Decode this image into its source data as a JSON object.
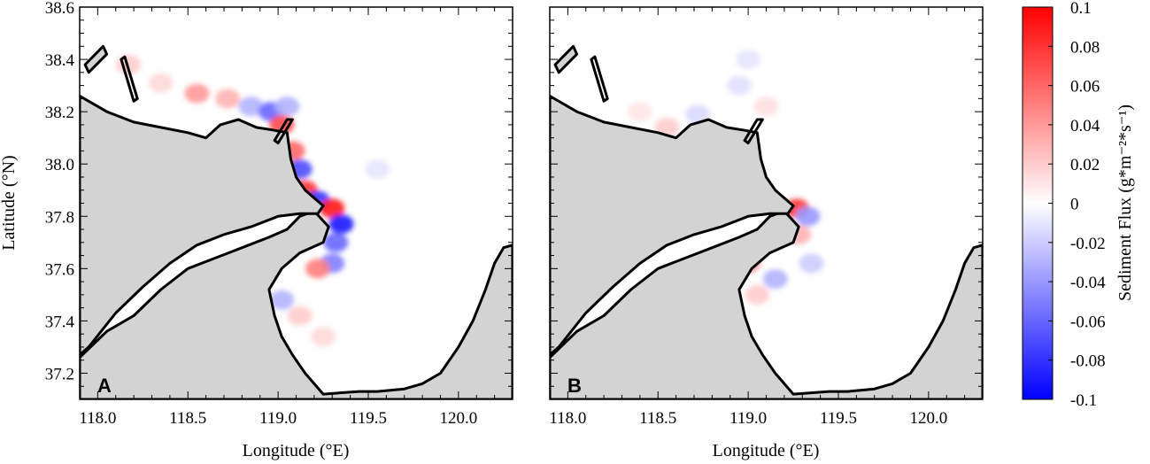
{
  "chart_data": [
    {
      "type": "heatmap",
      "panel_label": "A",
      "xlabel": "Longitude (°E)",
      "ylabel": "Latitude (°N)",
      "xlim": [
        117.9,
        120.3
      ],
      "ylim": [
        37.1,
        38.6
      ],
      "x_ticks": [
        "118.0",
        "118.5",
        "119.0",
        "119.5",
        "120.0"
      ],
      "x_tick_values": [
        118.0,
        118.5,
        119.0,
        119.5,
        120.0
      ],
      "y_ticks": [
        "37.2",
        "37.4",
        "37.6",
        "37.8",
        "38.0",
        "38.2",
        "38.4",
        "38.6"
      ],
      "y_tick_values": [
        37.2,
        37.4,
        37.6,
        37.8,
        38.0,
        38.2,
        38.4,
        38.6
      ],
      "field_patches": [
        {
          "lon": 118.17,
          "lat": 38.38,
          "value": 0.02
        },
        {
          "lon": 118.35,
          "lat": 38.31,
          "value": 0.015
        },
        {
          "lon": 118.55,
          "lat": 38.27,
          "value": 0.04
        },
        {
          "lon": 118.72,
          "lat": 38.25,
          "value": 0.03
        },
        {
          "lon": 118.85,
          "lat": 38.22,
          "value": -0.03
        },
        {
          "lon": 118.96,
          "lat": 38.2,
          "value": -0.06
        },
        {
          "lon": 119.05,
          "lat": 38.22,
          "value": -0.03
        },
        {
          "lon": 119.02,
          "lat": 38.15,
          "value": 0.07
        },
        {
          "lon": 119.08,
          "lat": 38.05,
          "value": 0.06
        },
        {
          "lon": 119.12,
          "lat": 37.98,
          "value": -0.07
        },
        {
          "lon": 119.15,
          "lat": 37.9,
          "value": 0.08
        },
        {
          "lon": 119.22,
          "lat": 37.86,
          "value": -0.08
        },
        {
          "lon": 119.3,
          "lat": 37.83,
          "value": 0.09
        },
        {
          "lon": 119.35,
          "lat": 37.77,
          "value": -0.09
        },
        {
          "lon": 119.32,
          "lat": 37.7,
          "value": -0.06
        },
        {
          "lon": 119.3,
          "lat": 37.62,
          "value": -0.05
        },
        {
          "lon": 119.22,
          "lat": 37.6,
          "value": 0.05
        },
        {
          "lon": 119.02,
          "lat": 37.48,
          "value": -0.03
        },
        {
          "lon": 119.12,
          "lat": 37.42,
          "value": 0.02
        },
        {
          "lon": 119.25,
          "lat": 37.34,
          "value": 0.015
        },
        {
          "lon": 119.55,
          "lat": 37.98,
          "value": -0.01
        }
      ]
    },
    {
      "type": "heatmap",
      "panel_label": "B",
      "xlabel": "Longitude (°E)",
      "xlim": [
        117.9,
        120.3
      ],
      "ylim": [
        37.1,
        38.6
      ],
      "x_ticks": [
        "118.0",
        "118.5",
        "119.0",
        "119.5",
        "120.0"
      ],
      "x_tick_values": [
        118.0,
        118.5,
        119.0,
        119.5,
        120.0
      ],
      "field_patches": [
        {
          "lon": 118.4,
          "lat": 38.2,
          "value": 0.01
        },
        {
          "lon": 118.55,
          "lat": 38.14,
          "value": 0.02
        },
        {
          "lon": 118.72,
          "lat": 38.19,
          "value": -0.015
        },
        {
          "lon": 118.95,
          "lat": 38.3,
          "value": -0.012
        },
        {
          "lon": 119.1,
          "lat": 38.22,
          "value": 0.012
        },
        {
          "lon": 119.0,
          "lat": 38.4,
          "value": -0.01
        },
        {
          "lon": 119.27,
          "lat": 37.83,
          "value": 0.08
        },
        {
          "lon": 119.33,
          "lat": 37.8,
          "value": -0.04
        },
        {
          "lon": 119.28,
          "lat": 37.73,
          "value": 0.03
        },
        {
          "lon": 119.0,
          "lat": 37.62,
          "value": 0.04
        },
        {
          "lon": 119.15,
          "lat": 37.56,
          "value": -0.03
        },
        {
          "lon": 119.35,
          "lat": 37.62,
          "value": -0.02
        },
        {
          "lon": 119.05,
          "lat": 37.5,
          "value": 0.02
        }
      ]
    }
  ],
  "colorbar": {
    "label": "Sediment Flux (g*m⁻²*s⁻¹)",
    "min": -0.1,
    "max": 0.1,
    "ticks": [
      "0.1",
      "0.08",
      "0.06",
      "0.04",
      "0.02",
      "0",
      "-0.02",
      "-0.04",
      "-0.06",
      "-0.08",
      "-0.1"
    ],
    "tick_values": [
      0.1,
      0.08,
      0.06,
      0.04,
      0.02,
      0,
      -0.02,
      -0.04,
      -0.06,
      -0.08,
      -0.1
    ],
    "colors": {
      "positive": "#ff0000",
      "zero": "#ffffff",
      "negative": "#0000ff"
    }
  },
  "colors": {
    "land": "#d3d3d3",
    "coastline": "#000000",
    "water": "#ffffff"
  }
}
